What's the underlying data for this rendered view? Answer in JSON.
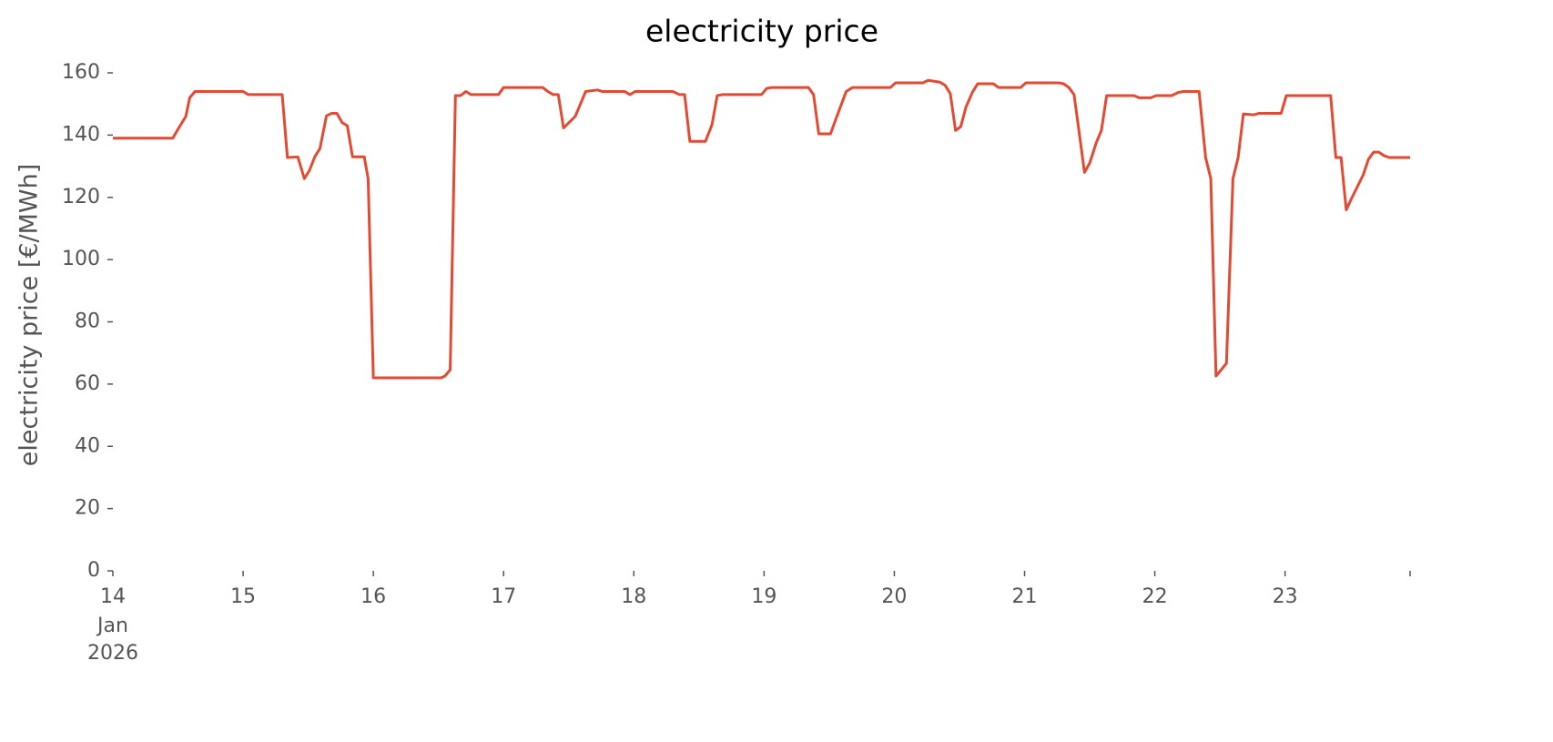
{
  "chart_data": {
    "type": "line",
    "title": "electricity price",
    "y_label": "electricity price [€/MWh]",
    "x_tick_sublabels": [
      "Jan",
      "2026"
    ],
    "x": [
      14,
      14.46,
      14.51,
      14.56,
      14.59,
      14.63,
      15.0,
      15.04,
      15.3,
      15.34,
      15.42,
      15.47,
      15.51,
      15.55,
      15.59,
      15.64,
      15.68,
      15.72,
      15.76,
      15.8,
      15.84,
      15.93,
      15.96,
      16.0,
      16.52,
      16.55,
      16.59,
      16.63,
      16.67,
      16.71,
      16.75,
      16.96,
      17.0,
      17.3,
      17.34,
      17.38,
      17.42,
      17.46,
      17.55,
      17.63,
      17.72,
      17.76,
      17.93,
      17.97,
      18.01,
      18.3,
      18.35,
      18.39,
      18.43,
      18.55,
      18.6,
      18.64,
      18.68,
      18.98,
      19.02,
      19.06,
      19.34,
      19.38,
      19.42,
      19.51,
      19.55,
      19.63,
      19.68,
      19.97,
      20.01,
      20.22,
      20.26,
      20.35,
      20.39,
      20.43,
      20.47,
      20.51,
      20.55,
      20.6,
      20.64,
      20.76,
      20.8,
      20.97,
      21.01,
      21.26,
      21.3,
      21.34,
      21.38,
      21.43,
      21.46,
      21.5,
      21.55,
      21.59,
      21.63,
      21.84,
      21.88,
      21.97,
      22.01,
      22.13,
      22.18,
      22.22,
      22.34,
      22.39,
      22.43,
      22.47,
      22.51,
      22.55,
      22.6,
      22.64,
      22.68,
      22.76,
      22.8,
      22.97,
      23.01,
      23.35,
      23.39,
      23.43,
      23.47,
      23.51,
      23.6,
      23.64,
      23.68,
      23.72,
      23.76,
      23.8,
      23.96
    ],
    "values": [
      139,
      139,
      142.6,
      146,
      152,
      154,
      154,
      153,
      153,
      132.8,
      133,
      126,
      128.7,
      133,
      135.7,
      146.2,
      147,
      147,
      144,
      143,
      133,
      133,
      126,
      62,
      62,
      62.6,
      64.6,
      152.7,
      152.7,
      154,
      153,
      153,
      155.3,
      155.3,
      154,
      153,
      153,
      142.3,
      146,
      154,
      154.5,
      154,
      154,
      153,
      154,
      154,
      153,
      153,
      138,
      138,
      143.3,
      152.7,
      153,
      153,
      155,
      155.3,
      155.3,
      153,
      140.4,
      140.4,
      145,
      154,
      155.3,
      155.3,
      156.8,
      156.8,
      157.6,
      157,
      156,
      153.3,
      141.5,
      142.7,
      149,
      153.8,
      156.5,
      156.5,
      155.3,
      155.3,
      156.8,
      156.8,
      156.5,
      155.3,
      153,
      137.5,
      128,
      131,
      137.5,
      141.5,
      152.7,
      152.7,
      152,
      152,
      152.7,
      152.7,
      153.7,
      154,
      154,
      132.8,
      126,
      62.6,
      64.6,
      66.7,
      126,
      132.8,
      146.8,
      146.5,
      147,
      147,
      152.7,
      152.7,
      132.8,
      132.8,
      116,
      119.6,
      127.2,
      132.2,
      134.5,
      134.5,
      133.4,
      132.8,
      132.8
    ],
    "color": "#e24a33",
    "xlim": [
      14,
      23.96
    ],
    "xticks": [
      14,
      15,
      16,
      17,
      18,
      19,
      20,
      21,
      22,
      23
    ],
    "ylim": [
      0,
      160
    ],
    "yticks": [
      0,
      20,
      40,
      60,
      80,
      100,
      120,
      140,
      160
    ],
    "grid": false
  }
}
